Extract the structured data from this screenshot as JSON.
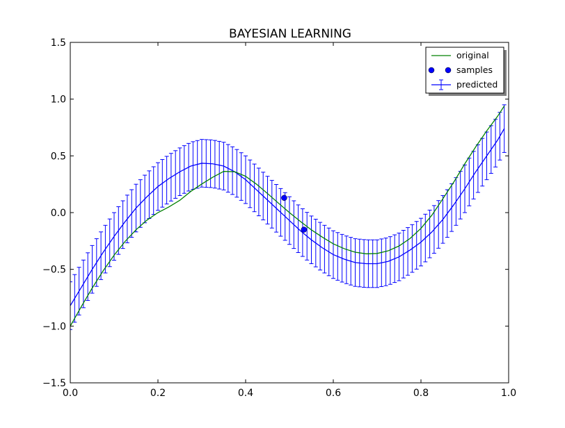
{
  "chart_data": {
    "type": "line",
    "title": "BAYESIAN LEARNING",
    "xlabel": "",
    "ylabel": "",
    "xlim": [
      0.0,
      1.0
    ],
    "ylim": [
      -1.5,
      1.5
    ],
    "xticks": [
      "0.0",
      "0.2",
      "0.4",
      "0.6",
      "0.8",
      "1.0"
    ],
    "yticks": [
      "−1.5",
      "−1.0",
      "−0.5",
      "0.0",
      "0.5",
      "1.0",
      "1.5"
    ],
    "grid": false,
    "legend": {
      "placement": "top-right",
      "entries": [
        {
          "label": "original",
          "style": "line",
          "color": "#008000"
        },
        {
          "label": "samples",
          "style": "markers",
          "color": "#0000ff"
        },
        {
          "label": "predicted",
          "style": "errorbar",
          "color": "#0000ff"
        }
      ]
    },
    "series": [
      {
        "name": "original",
        "color": "#008000",
        "x": [
          0.0,
          0.025,
          0.05,
          0.075,
          0.1,
          0.125,
          0.15,
          0.175,
          0.2,
          0.225,
          0.25,
          0.275,
          0.3,
          0.325,
          0.35,
          0.375,
          0.4,
          0.425,
          0.45,
          0.475,
          0.5,
          0.525,
          0.55,
          0.575,
          0.6,
          0.625,
          0.65,
          0.675,
          0.7,
          0.725,
          0.75,
          0.775,
          0.8,
          0.825,
          0.85,
          0.875,
          0.9,
          0.925,
          0.95,
          0.975,
          0.99
        ],
        "y": [
          -1.0,
          -0.829,
          -0.665,
          -0.513,
          -0.375,
          -0.254,
          -0.151,
          -0.066,
          0.0,
          0.05,
          0.109,
          0.187,
          0.252,
          0.312,
          0.363,
          0.36,
          0.32,
          0.25,
          0.168,
          0.083,
          0.0,
          -0.078,
          -0.152,
          -0.216,
          -0.275,
          -0.318,
          -0.349,
          -0.363,
          -0.36,
          -0.337,
          -0.294,
          -0.228,
          -0.139,
          -0.022,
          0.122,
          0.27,
          0.43,
          0.58,
          0.72,
          0.85,
          0.94
        ]
      },
      {
        "name": "predicted",
        "color": "#0000ff",
        "x": [
          0.0,
          0.025,
          0.05,
          0.075,
          0.1,
          0.125,
          0.15,
          0.175,
          0.2,
          0.225,
          0.25,
          0.275,
          0.3,
          0.325,
          0.35,
          0.375,
          0.4,
          0.425,
          0.45,
          0.475,
          0.5,
          0.525,
          0.55,
          0.575,
          0.6,
          0.625,
          0.65,
          0.675,
          0.7,
          0.725,
          0.75,
          0.775,
          0.8,
          0.825,
          0.85,
          0.875,
          0.9,
          0.925,
          0.95,
          0.975,
          0.99
        ],
        "y": [
          -0.82,
          -0.66,
          -0.5,
          -0.35,
          -0.21,
          -0.08,
          0.04,
          0.14,
          0.23,
          0.3,
          0.36,
          0.41,
          0.435,
          0.43,
          0.41,
          0.36,
          0.29,
          0.2,
          0.11,
          0.02,
          -0.07,
          -0.16,
          -0.24,
          -0.31,
          -0.37,
          -0.41,
          -0.44,
          -0.45,
          -0.45,
          -0.43,
          -0.39,
          -0.33,
          -0.26,
          -0.17,
          -0.06,
          0.07,
          0.21,
          0.36,
          0.5,
          0.64,
          0.74
        ],
        "error": 0.21
      },
      {
        "name": "samples",
        "color": "#0000ff",
        "style": "markers",
        "x": [
          0.488,
          0.533
        ],
        "y": [
          0.13,
          -0.15
        ]
      }
    ]
  }
}
